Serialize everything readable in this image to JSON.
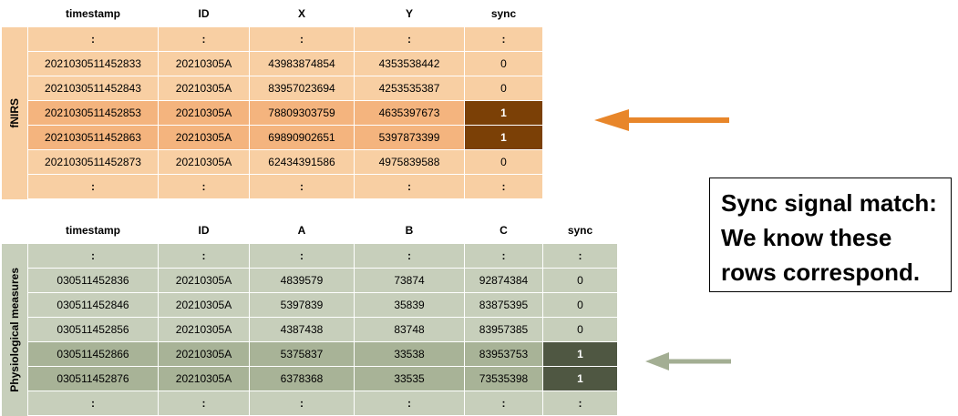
{
  "fnirs": {
    "label": "fNIRS",
    "headers": [
      "timestamp",
      "ID",
      "X",
      "Y",
      "sync"
    ],
    "rows": [
      [
        ":",
        ":",
        ":",
        ":",
        ":"
      ],
      [
        "2021030511452833",
        "20210305A",
        "43983874854",
        "4353538442",
        "0"
      ],
      [
        "2021030511452843",
        "20210305A",
        "83957023694",
        "4253535387",
        "0"
      ],
      [
        "2021030511452853",
        "20210305A",
        "78809303759",
        "4635397673",
        "1"
      ],
      [
        "2021030511452863",
        "20210305A",
        "69890902651",
        "5397873399",
        "1"
      ],
      [
        "2021030511452873",
        "20210305A",
        "62434391586",
        "4975839588",
        "0"
      ],
      [
        ":",
        ":",
        ":",
        ":",
        ":"
      ]
    ],
    "highlight_rows": [
      3,
      4
    ]
  },
  "physio": {
    "label": "Physiological measures",
    "headers": [
      "timestamp",
      "ID",
      "A",
      "B",
      "C",
      "sync"
    ],
    "rows": [
      [
        ":",
        ":",
        ":",
        ":",
        ":",
        ":"
      ],
      [
        "030511452836",
        "20210305A",
        "4839579",
        "73874",
        "92874384",
        "0"
      ],
      [
        "030511452846",
        "20210305A",
        "5397839",
        "35839",
        "83875395",
        "0"
      ],
      [
        "030511452856",
        "20210305A",
        "4387438",
        "83748",
        "83957385",
        "0"
      ],
      [
        "030511452866",
        "20210305A",
        "5375837",
        "33538",
        "83953753",
        "1"
      ],
      [
        "030511452876",
        "20210305A",
        "6378368",
        "33535",
        "73535398",
        "1"
      ],
      [
        ":",
        ":",
        ":",
        ":",
        ":",
        ":"
      ]
    ],
    "highlight_rows": [
      4,
      5
    ]
  },
  "note": {
    "lines": [
      "Sync signal match:",
      "We know these",
      "rows correspond."
    ]
  },
  "colors": {
    "fnirs_arrow": "#e8862a",
    "physio_arrow": "#a3ae93"
  }
}
